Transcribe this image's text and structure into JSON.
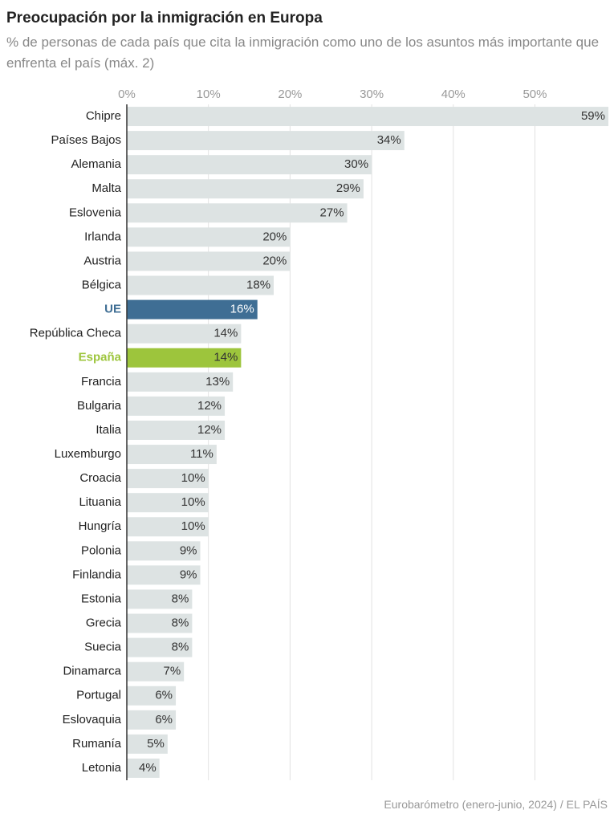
{
  "chart_data": {
    "type": "bar",
    "orientation": "horizontal",
    "title": "Preocupación por la inmigración en Europa",
    "subtitle": "% de personas de cada país que cita la inmigración como uno de los asuntos más importante que enfrenta el país (máx. 2)",
    "source": "Eurobarómetro (enero-junio, 2024) / EL PAÍS",
    "categories": [
      "Chipre",
      "Países Bajos",
      "Alemania",
      "Malta",
      "Eslovenia",
      "Irlanda",
      "Austria",
      "Bélgica",
      "UE",
      "República Checa",
      "España",
      "Francia",
      "Bulgaria",
      "Italia",
      "Luxemburgo",
      "Croacia",
      "Lituania",
      "Hungría",
      "Polonia",
      "Finlandia",
      "Estonia",
      "Grecia",
      "Suecia",
      "Dinamarca",
      "Portugal",
      "Eslovaquia",
      "Rumanía",
      "Letonia"
    ],
    "values": [
      59,
      34,
      30,
      29,
      27,
      20,
      20,
      18,
      16,
      14,
      14,
      13,
      12,
      12,
      11,
      10,
      10,
      10,
      9,
      9,
      8,
      8,
      8,
      7,
      6,
      6,
      5,
      4
    ],
    "value_labels": [
      "59%",
      "34%",
      "30%",
      "29%",
      "27%",
      "20%",
      "20%",
      "18%",
      "16%",
      "14%",
      "14%",
      "13%",
      "12%",
      "12%",
      "11%",
      "10%",
      "10%",
      "10%",
      "9%",
      "9%",
      "8%",
      "8%",
      "8%",
      "7%",
      "6%",
      "6%",
      "5%",
      "4%"
    ],
    "color": "#dde3e3",
    "colors": [
      "#dde3e3",
      "#dde3e3",
      "#dde3e3",
      "#dde3e3",
      "#dde3e3",
      "#dde3e3",
      "#dde3e3",
      "#dde3e3",
      "#3f6e94",
      "#dde3e3",
      "#9dc53c",
      "#dde3e3",
      "#dde3e3",
      "#dde3e3",
      "#dde3e3",
      "#dde3e3",
      "#dde3e3",
      "#dde3e3",
      "#dde3e3",
      "#dde3e3",
      "#dde3e3",
      "#dde3e3",
      "#dde3e3",
      "#dde3e3",
      "#dde3e3",
      "#dde3e3",
      "#dde3e3",
      "#dde3e3"
    ],
    "xlim": [
      0,
      59
    ],
    "xticks": [
      {
        "value": 0,
        "label": "0%"
      },
      {
        "value": 10,
        "label": "10%"
      },
      {
        "value": 20,
        "label": "20%"
      },
      {
        "value": 30,
        "label": "30%"
      },
      {
        "value": 40,
        "label": "40%"
      },
      {
        "value": 50,
        "label": "50%"
      }
    ],
    "grid": true
  }
}
